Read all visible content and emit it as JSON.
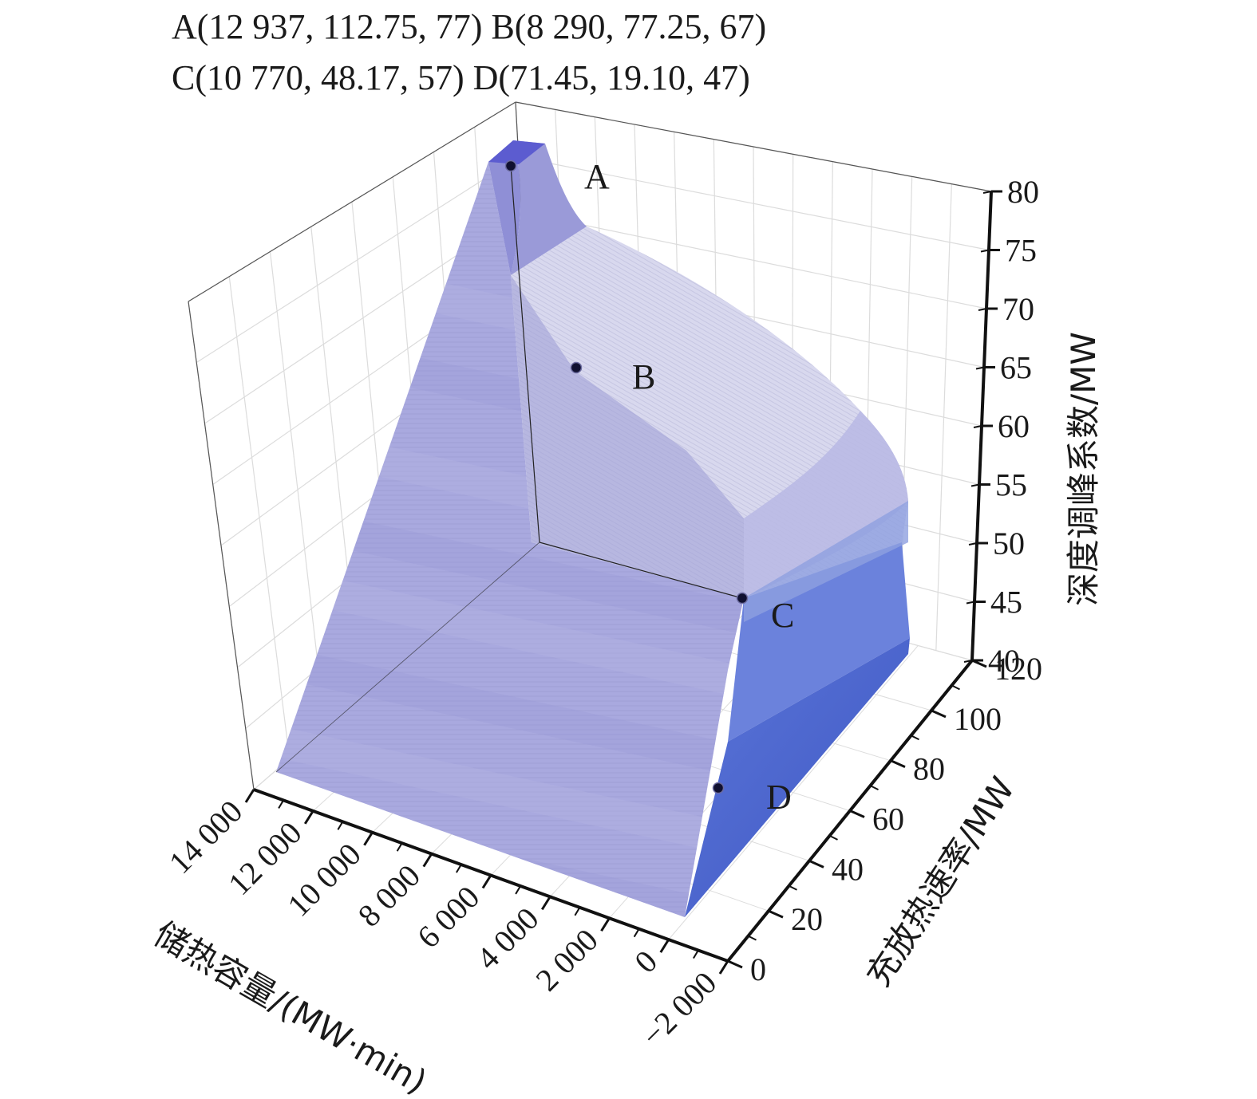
{
  "chart_data": {
    "type": "surface3d",
    "header_lines": [
      "A(12 937, 112.75, 77) B(8 290, 77.25, 67)",
      "C(10 770, 48.17, 57) D(71.45, 19.10, 47)"
    ],
    "points": [
      {
        "label": "A",
        "capacity": 12937,
        "rate": 112.75,
        "coefficient": 77
      },
      {
        "label": "B",
        "capacity": 8290,
        "rate": 77.25,
        "coefficient": 67
      },
      {
        "label": "C",
        "capacity": 10770,
        "rate": 48.17,
        "coefficient": 57
      },
      {
        "label": "D",
        "capacity": 71.45,
        "rate": 19.1,
        "coefficient": 47
      }
    ],
    "x_axis": {
      "label": "储热容量/(MW·min)",
      "ticks": [
        14000,
        12000,
        10000,
        8000,
        6000,
        4000,
        2000,
        0,
        -2000
      ],
      "tick_labels": [
        "14 000",
        "12 000",
        "10 000",
        "8 000",
        "6 000",
        "4 000",
        "2 000",
        "0",
        "−2 000"
      ],
      "range": [
        -2000,
        14000
      ]
    },
    "y_axis": {
      "label": "充放热速率/MW",
      "ticks": [
        0,
        20,
        40,
        60,
        80,
        100,
        120
      ],
      "tick_labels": [
        "0",
        "20",
        "40",
        "60",
        "80",
        "100",
        "120"
      ],
      "range": [
        0,
        120
      ]
    },
    "z_axis": {
      "label": "深度调峰系数/MW",
      "ticks": [
        40,
        45,
        50,
        55,
        60,
        65,
        70,
        75,
        80
      ],
      "tick_labels": [
        "40",
        "45",
        "50",
        "55",
        "60",
        "65",
        "70",
        "75",
        "80"
      ],
      "range": [
        40,
        80
      ]
    },
    "grid": true,
    "colors": {
      "surface_front": "#a7a7de",
      "surface_top": "#d9d9ef",
      "surface_right": "#4d68cf",
      "peak": "#5c5cd0",
      "marker": "#101030",
      "axis": "#111111",
      "grid": "#dcdcdc"
    }
  }
}
